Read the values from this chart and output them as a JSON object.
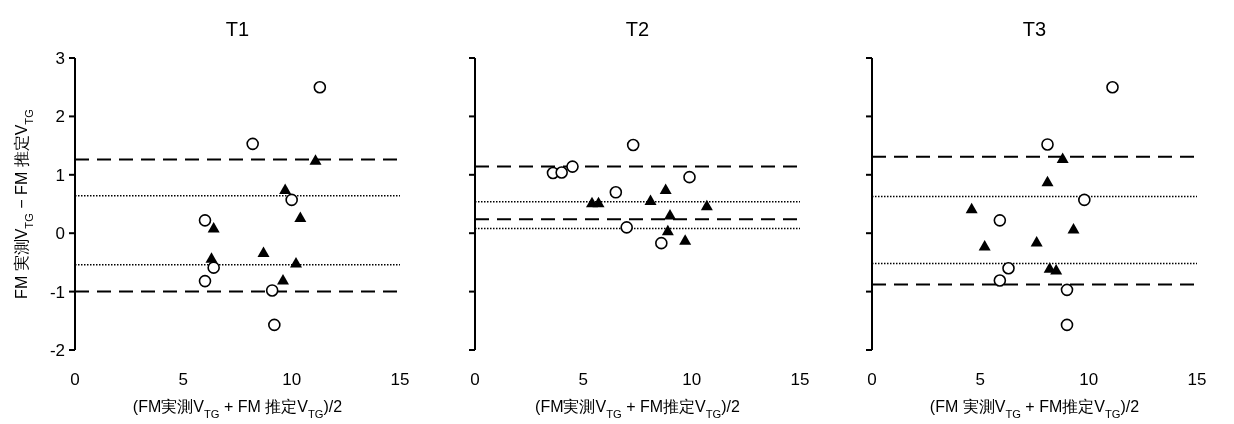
{
  "chart_data": [
    {
      "type": "scatter",
      "title": "T1",
      "xlabel": "(FM実測V$_{TG}$ + FM 推定V$_{TG}$)/2",
      "ylabel": "FM 実測V$_{TG}$ − FM 推定V$_{TG}$",
      "xlim": [
        0,
        15
      ],
      "xticks": [
        0,
        5,
        10,
        15
      ],
      "ylim": [
        -2,
        3
      ],
      "yticks": [
        -2,
        -1,
        0,
        1,
        2,
        3
      ],
      "grid": false,
      "series": [
        {
          "color": "#000000",
          "marker": "circle",
          "x": [
            8.2,
            11.3,
            6.0,
            10.0,
            6.4,
            6.0,
            9.1,
            9.2
          ],
          "values": [
            1.53,
            2.5,
            0.22,
            0.57,
            -0.59,
            -0.82,
            -0.98,
            -1.57
          ]
        },
        {
          "color": "#000000",
          "marker": "triangle",
          "x": [
            11.1,
            9.7,
            10.4,
            6.4,
            6.3,
            8.7,
            10.2,
            9.6
          ],
          "values": [
            1.25,
            0.75,
            0.27,
            0.09,
            -0.43,
            -0.33,
            -0.51,
            -0.8
          ]
        }
      ],
      "ref_lines": [
        {
          "axis": "y",
          "value": 1.26,
          "line_style": "dashed"
        },
        {
          "axis": "y",
          "value": -1.0,
          "line_style": "dashed"
        },
        {
          "axis": "y",
          "value": 0.64,
          "line_style": "dotted"
        },
        {
          "axis": "y",
          "value": -0.54,
          "line_style": "dotted"
        }
      ]
    },
    {
      "type": "scatter",
      "title": "T2",
      "xlabel": "(FM実測V$_{TG}$ + FM推定V$_{TG}$)/2",
      "tick_labels": "x",
      "xlim": [
        0,
        15
      ],
      "xticks": [
        0,
        5,
        10,
        15
      ],
      "ylim": [
        -2,
        3
      ],
      "yticks": [
        -2,
        -1,
        0,
        1,
        2,
        3
      ],
      "grid": false,
      "series": [
        {
          "color": "#000000",
          "marker": "circle",
          "x": [
            3.6,
            4.0,
            4.5,
            7.3,
            6.5,
            9.9,
            7.0,
            8.6
          ],
          "values": [
            1.03,
            1.04,
            1.14,
            1.51,
            0.7,
            0.96,
            0.1,
            -0.17
          ]
        },
        {
          "color": "#000000",
          "marker": "triangle",
          "x": [
            5.4,
            5.7,
            8.1,
            8.8,
            9.0,
            10.7,
            8.9,
            9.7
          ],
          "values": [
            0.52,
            0.52,
            0.56,
            0.75,
            0.31,
            0.47,
            0.04,
            -0.12
          ]
        }
      ],
      "ref_lines": [
        {
          "axis": "y",
          "value": 1.14,
          "line_style": "dashed"
        },
        {
          "axis": "y",
          "value": 0.24,
          "line_style": "dashed"
        },
        {
          "axis": "y",
          "value": 0.54,
          "line_style": "dotted"
        },
        {
          "axis": "y",
          "value": 0.08,
          "line_style": "dotted"
        }
      ]
    },
    {
      "type": "scatter",
      "title": "T3",
      "xlabel": "(FM 実測V$_{TG}$ + FM推定V$_{TG}$)/2",
      "tick_labels": "x",
      "xlim": [
        0,
        15
      ],
      "xticks": [
        0,
        5,
        10,
        15
      ],
      "ylim": [
        -2,
        3
      ],
      "yticks": [
        -2,
        -1,
        0,
        1,
        2,
        3
      ],
      "grid": false,
      "series": [
        {
          "color": "#000000",
          "marker": "circle",
          "x": [
            11.1,
            8.1,
            9.8,
            5.9,
            6.3,
            5.9,
            9.0,
            9.0
          ],
          "values": [
            2.5,
            1.52,
            0.57,
            0.22,
            -0.6,
            -0.81,
            -0.97,
            -1.57
          ]
        },
        {
          "color": "#000000",
          "marker": "triangle",
          "x": [
            8.8,
            8.1,
            4.6,
            9.3,
            5.2,
            7.6,
            8.2,
            8.5
          ],
          "values": [
            1.28,
            0.88,
            0.42,
            0.07,
            -0.22,
            -0.15,
            -0.6,
            -0.63
          ]
        }
      ],
      "ref_lines": [
        {
          "axis": "y",
          "value": 1.31,
          "line_style": "dashed"
        },
        {
          "axis": "y",
          "value": -0.88,
          "line_style": "dashed"
        },
        {
          "axis": "y",
          "value": 0.63,
          "line_style": "dotted"
        },
        {
          "axis": "y",
          "value": -0.52,
          "line_style": "dotted"
        }
      ]
    }
  ]
}
